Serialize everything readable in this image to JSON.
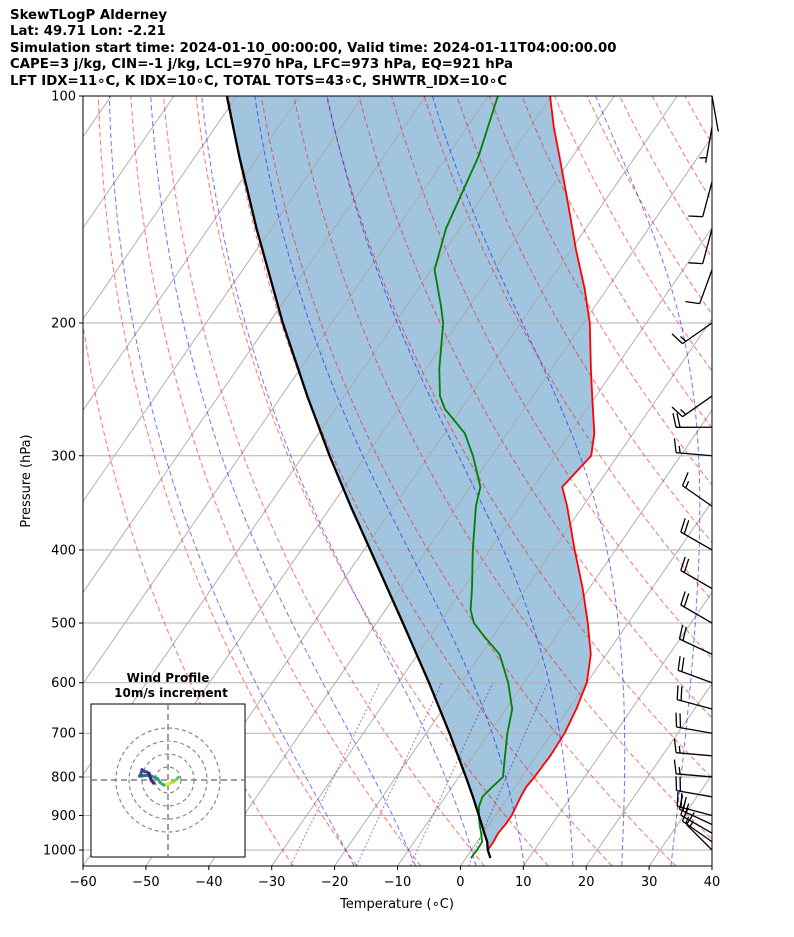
{
  "header": {
    "title": "SkewTLogP Alderney",
    "location": "Lat: 49.71   Lon: -2.21",
    "times": "Simulation start time: 2024-01-10_00:00:00, Valid time: 2024-01-11T04:00:00.00",
    "params1": "CAPE=3 j/kg, CIN=-1 j/kg, LCL=970 hPa, LFC=973 hPa, EQ=921 hPa",
    "params2": "LFT IDX=11∘C, K IDX=10∘C, TOTAL TOTS=43∘C, SHWTR_IDX=10∘C"
  },
  "chart_data": {
    "type": "skewt",
    "xlabel": "Temperature (∘C)",
    "ylabel": "Pressure (hPa)",
    "xlim": [
      -60,
      40
    ],
    "plim": [
      1050,
      100
    ],
    "x_ticks": [
      -60,
      -50,
      -40,
      -30,
      -20,
      -10,
      0,
      10,
      20,
      30,
      40
    ],
    "x_tick_labels": [
      "−60",
      "−50",
      "−40",
      "−30",
      "−20",
      "−10",
      "0",
      "10",
      "20",
      "30",
      "40"
    ],
    "p_ticks": [
      1000,
      900,
      800,
      700,
      600,
      500,
      400,
      300,
      200,
      100
    ],
    "p_tick_labels": [
      "1000",
      "900",
      "800",
      "700",
      "600",
      "500",
      "400",
      "300",
      "200",
      "100"
    ],
    "series": [
      {
        "name": "Temperature",
        "color": "#ff0000",
        "points": [
          [
            1000,
            2.6
          ],
          [
            975,
            2.6
          ],
          [
            950,
            2.4
          ],
          [
            925,
            2.6
          ],
          [
            900,
            2.6
          ],
          [
            850,
            2.0
          ],
          [
            825,
            1.8
          ],
          [
            800,
            2.0
          ],
          [
            750,
            2.2
          ],
          [
            700,
            2.0
          ],
          [
            650,
            1.2
          ],
          [
            600,
            0.0
          ],
          [
            550,
            -2.5
          ],
          [
            500,
            -6.4
          ],
          [
            450,
            -11.0
          ],
          [
            400,
            -16.5
          ],
          [
            350,
            -22.5
          ],
          [
            330,
            -25.4
          ],
          [
            300,
            -24.2
          ],
          [
            280,
            -26.2
          ],
          [
            250,
            -30.6
          ],
          [
            230,
            -33.8
          ],
          [
            200,
            -39.0
          ],
          [
            180,
            -43.6
          ],
          [
            160,
            -49.2
          ],
          [
            140,
            -55.2
          ],
          [
            120,
            -62.2
          ],
          [
            110,
            -66.2
          ],
          [
            100,
            -70.2
          ]
        ]
      },
      {
        "name": "Dewpoint",
        "color": "#008000",
        "points": [
          [
            1025,
            0.8
          ],
          [
            1000,
            0.9
          ],
          [
            975,
            0.8
          ],
          [
            950,
            -0.3
          ],
          [
            925,
            -1.5
          ],
          [
            900,
            -2.6
          ],
          [
            875,
            -3.6
          ],
          [
            850,
            -4.1
          ],
          [
            825,
            -3.6
          ],
          [
            800,
            -3.0
          ],
          [
            750,
            -5.0
          ],
          [
            700,
            -7.1
          ],
          [
            650,
            -9.0
          ],
          [
            600,
            -12.5
          ],
          [
            550,
            -17.0
          ],
          [
            520,
            -21.5
          ],
          [
            500,
            -24.5
          ],
          [
            480,
            -26.5
          ],
          [
            450,
            -28.6
          ],
          [
            400,
            -32.7
          ],
          [
            350,
            -37.0
          ],
          [
            330,
            -38.4
          ],
          [
            300,
            -43.0
          ],
          [
            280,
            -46.8
          ],
          [
            260,
            -52.6
          ],
          [
            250,
            -54.8
          ],
          [
            230,
            -57.9
          ],
          [
            200,
            -62.3
          ],
          [
            190,
            -64.5
          ],
          [
            170,
            -69.5
          ],
          [
            150,
            -72.2
          ],
          [
            120,
            -75.0
          ],
          [
            100,
            -78.5
          ]
        ]
      },
      {
        "name": "Parcel profile",
        "color": "#000000",
        "points": [
          [
            1025,
            3.9
          ],
          [
            1000,
            2.6
          ],
          [
            975,
            1.6
          ],
          [
            950,
            0.2
          ],
          [
            900,
            -2.6
          ],
          [
            850,
            -5.6
          ],
          [
            800,
            -8.9
          ],
          [
            700,
            -16.3
          ],
          [
            600,
            -25.1
          ],
          [
            500,
            -35.8
          ],
          [
            400,
            -49.0
          ],
          [
            350,
            -56.9
          ],
          [
            300,
            -65.8
          ],
          [
            250,
            -75.9
          ],
          [
            200,
            -87.8
          ],
          [
            150,
            -102.3
          ],
          [
            120,
            -113.1
          ],
          [
            100,
            -121.6
          ]
        ]
      }
    ],
    "shading": {
      "name": "CIN / negative area",
      "color": "#a1c4df",
      "between": [
        "Temperature",
        "Parcel profile"
      ]
    },
    "wind_barbs": [
      {
        "p": 1000,
        "dir": 315,
        "kt": 18
      },
      {
        "p": 975,
        "dir": 305,
        "kt": 18
      },
      {
        "p": 950,
        "dir": 300,
        "kt": 20
      },
      {
        "p": 925,
        "dir": 295,
        "kt": 22
      },
      {
        "p": 900,
        "dir": 285,
        "kt": 22
      },
      {
        "p": 850,
        "dir": 280,
        "kt": 20
      },
      {
        "p": 800,
        "dir": 275,
        "kt": 18
      },
      {
        "p": 750,
        "dir": 275,
        "kt": 18
      },
      {
        "p": 700,
        "dir": 280,
        "kt": 20
      },
      {
        "p": 650,
        "dir": 285,
        "kt": 20
      },
      {
        "p": 600,
        "dir": 290,
        "kt": 20
      },
      {
        "p": 550,
        "dir": 295,
        "kt": 20
      },
      {
        "p": 500,
        "dir": 300,
        "kt": 20
      },
      {
        "p": 450,
        "dir": 300,
        "kt": 20
      },
      {
        "p": 400,
        "dir": 300,
        "kt": 20
      },
      {
        "p": 350,
        "dir": 305,
        "kt": 18
      },
      {
        "p": 300,
        "dir": 275,
        "kt": 18
      },
      {
        "p": 275,
        "dir": 270,
        "kt": 20
      },
      {
        "p": 250,
        "dir": 235,
        "kt": 15
      },
      {
        "p": 200,
        "dir": 235,
        "kt": 15
      },
      {
        "p": 170,
        "dir": 200,
        "kt": 10
      },
      {
        "p": 150,
        "dir": 195,
        "kt": 10
      },
      {
        "p": 130,
        "dir": 195,
        "kt": 10
      },
      {
        "p": 110,
        "dir": 190,
        "kt": 5
      },
      {
        "p": 100,
        "dir": 170,
        "kt": 0
      }
    ],
    "hodograph": {
      "title": "Wind Profile",
      "subtitle": "10m/s increment",
      "ring_step_ms": 10,
      "points": [
        [
          8,
          2
        ],
        [
          6,
          0
        ],
        [
          3,
          -2
        ],
        [
          0,
          -3
        ],
        [
          -3,
          -4
        ],
        [
          -6,
          -2
        ],
        [
          -8,
          1
        ],
        [
          -10,
          2
        ],
        [
          -13,
          3
        ],
        [
          -15,
          3.5
        ],
        [
          -18,
          3.5
        ],
        [
          -20,
          3
        ],
        [
          -22,
          3
        ],
        [
          -21,
          4
        ],
        [
          -20.5,
          6
        ],
        [
          -20,
          8
        ],
        [
          -19.5,
          7.5
        ],
        [
          -18,
          6.5
        ],
        [
          -16,
          6
        ],
        [
          -14.5,
          5
        ],
        [
          -14,
          3
        ],
        [
          -13,
          0
        ],
        [
          -11,
          -2.5
        ]
      ]
    }
  }
}
